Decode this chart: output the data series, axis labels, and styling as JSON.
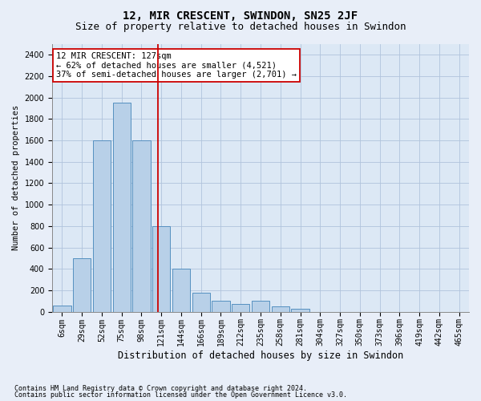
{
  "title": "12, MIR CRESCENT, SWINDON, SN25 2JF",
  "subtitle": "Size of property relative to detached houses in Swindon",
  "xlabel": "Distribution of detached houses by size in Swindon",
  "ylabel": "Number of detached properties",
  "footnote1": "Contains HM Land Registry data © Crown copyright and database right 2024.",
  "footnote2": "Contains public sector information licensed under the Open Government Licence v3.0.",
  "categories": [
    "6sqm",
    "29sqm",
    "52sqm",
    "75sqm",
    "98sqm",
    "121sqm",
    "144sqm",
    "166sqm",
    "189sqm",
    "212sqm",
    "235sqm",
    "258sqm",
    "281sqm",
    "304sqm",
    "327sqm",
    "350sqm",
    "373sqm",
    "396sqm",
    "419sqm",
    "442sqm",
    "465sqm"
  ],
  "values": [
    60,
    500,
    1600,
    1950,
    1600,
    800,
    400,
    175,
    100,
    75,
    100,
    50,
    25,
    0,
    0,
    0,
    0,
    0,
    0,
    0,
    0
  ],
  "bar_color": "#b8d0e8",
  "bar_edge_color": "#5590c0",
  "vline_color": "#cc0000",
  "vline_index": 4.85,
  "annotation_text": "12 MIR CRESCENT: 127sqm\n← 62% of detached houses are smaller (4,521)\n37% of semi-detached houses are larger (2,701) →",
  "annotation_box_color": "#cc0000",
  "ylim": [
    0,
    2500
  ],
  "yticks": [
    0,
    200,
    400,
    600,
    800,
    1000,
    1200,
    1400,
    1600,
    1800,
    2000,
    2200,
    2400
  ],
  "bg_color": "#e8eef8",
  "plot_bg_color": "#dce8f5",
  "grid_color": "#b0c4dc",
  "title_fontsize": 10,
  "subtitle_fontsize": 9,
  "xlabel_fontsize": 8.5,
  "ylabel_fontsize": 7.5,
  "tick_fontsize": 7,
  "annotation_fontsize": 7.5,
  "footnote_fontsize": 6.0
}
